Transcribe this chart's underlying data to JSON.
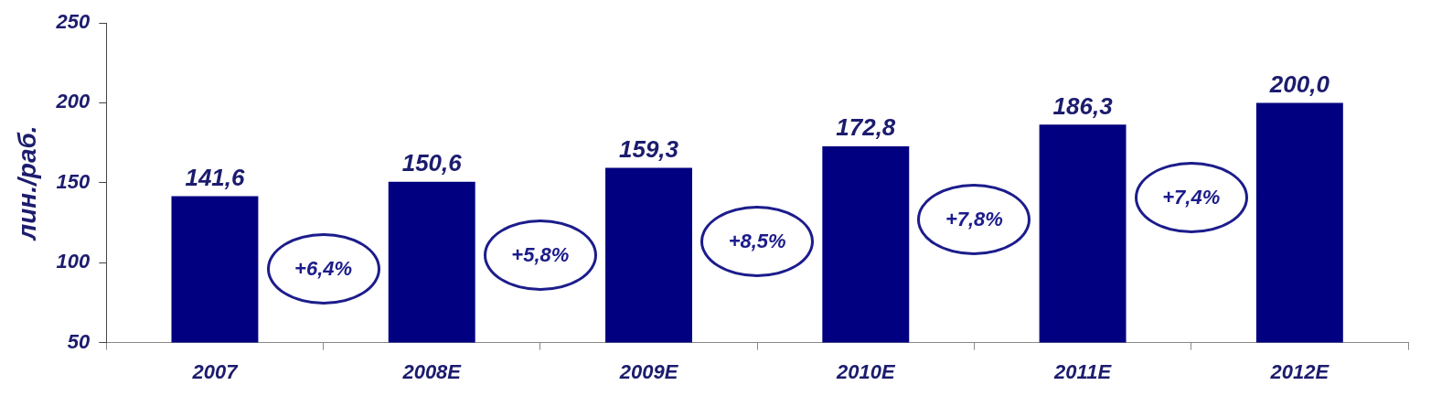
{
  "chart_data": {
    "type": "bar",
    "ylabel": "лин./раб.",
    "categories": [
      "2007",
      "2008E",
      "2009E",
      "2010E",
      "2011E",
      "2012E"
    ],
    "values": [
      141.6,
      150.6,
      159.3,
      172.8,
      186.3,
      200.0
    ],
    "value_labels": [
      "141,6",
      "150,6",
      "159,3",
      "172,8",
      "186,3",
      "200,0"
    ],
    "color": "#000080",
    "ylim": [
      50,
      250
    ],
    "yticks": [
      50,
      100,
      150,
      200,
      250
    ],
    "grid": false,
    "legend": false,
    "annotations": [
      "+6,4%",
      "+5,8%",
      "+8,5%",
      "+7,8%",
      "+7,4%"
    ]
  }
}
